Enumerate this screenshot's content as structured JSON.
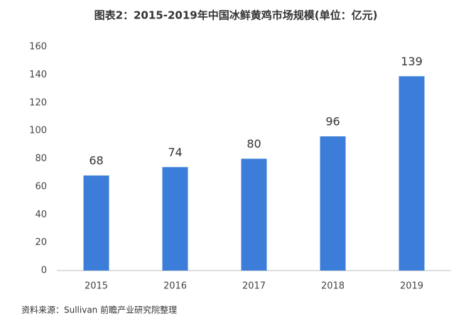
{
  "chart_data": {
    "type": "bar",
    "title": "图表2：2015-2019年中国冰鲜黄鸡市场规模(单位：亿元)",
    "categories": [
      "2015",
      "2016",
      "2017",
      "2018",
      "2019"
    ],
    "values": [
      68,
      74,
      80,
      96,
      139
    ],
    "color": "#3b7dd8",
    "ylim": [
      0,
      160
    ],
    "yticks": [
      0,
      20,
      40,
      60,
      80,
      100,
      120,
      140,
      160
    ],
    "grid": false,
    "source": "资料来源：Sullivan  前瞻产业研究院整理"
  }
}
